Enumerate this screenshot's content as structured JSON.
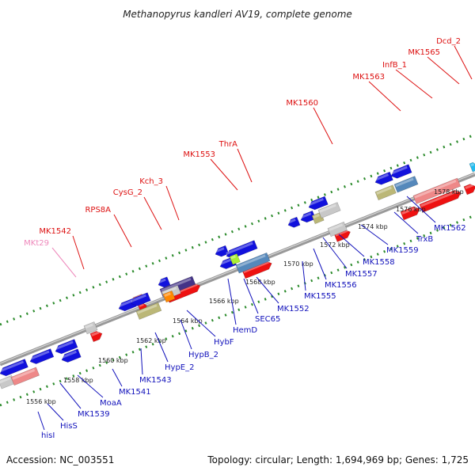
{
  "title": "Methanopyrus kandleri AV19, complete genome",
  "footer": {
    "accession": "Accession: NC_003551",
    "summary": "Topology: circular; Length: 1,694,969 bp; Genes: 1,725"
  },
  "colors": {
    "forward_label": "#dd1111",
    "reverse_label": "#1111bb",
    "rna_label": "#ee88bb",
    "track_grey": "#999999",
    "tick_green": "#2a8a2a",
    "gene_red": "#ee1111",
    "gene_blue": "#1111dd",
    "gene_grey": "#c8c8c8",
    "gene_pink": "#ee8888",
    "gene_steel": "#5588bb",
    "gene_khaki": "#bbb777",
    "gene_purple": "#443388",
    "gene_orange": "#ff8800",
    "gene_lime": "#aaee33",
    "gene_cyan": "#22bbee"
  },
  "kbp_labels": [
    "1556 kbp",
    "1558 kbp",
    "1560 kbp",
    "1562 kbp",
    "1564 kbp",
    "1566 kbp",
    "1568 kbp",
    "1570 kbp",
    "1572 kbp",
    "1574 kbp",
    "1576 kbp",
    "1578 kbp"
  ],
  "forward_labels": [
    "MKt29",
    "MK1542",
    "RPS8A",
    "CysG_2",
    "Kch_3",
    "MK1553",
    "ThrA",
    "MK1560",
    "MK1563",
    "InfB_1",
    "MK1565",
    "Dcd_2"
  ],
  "reverse_labels": [
    "hisI",
    "HisS",
    "MK1539",
    "MoaA",
    "MK1541",
    "MK1543",
    "HypE_2",
    "HypB_2",
    "HybF",
    "HemD",
    "SEC65",
    "MK1552",
    "MK1555",
    "MK1556",
    "MK1557",
    "MK1558",
    "MK1559",
    "TrxB",
    "MK1562"
  ]
}
